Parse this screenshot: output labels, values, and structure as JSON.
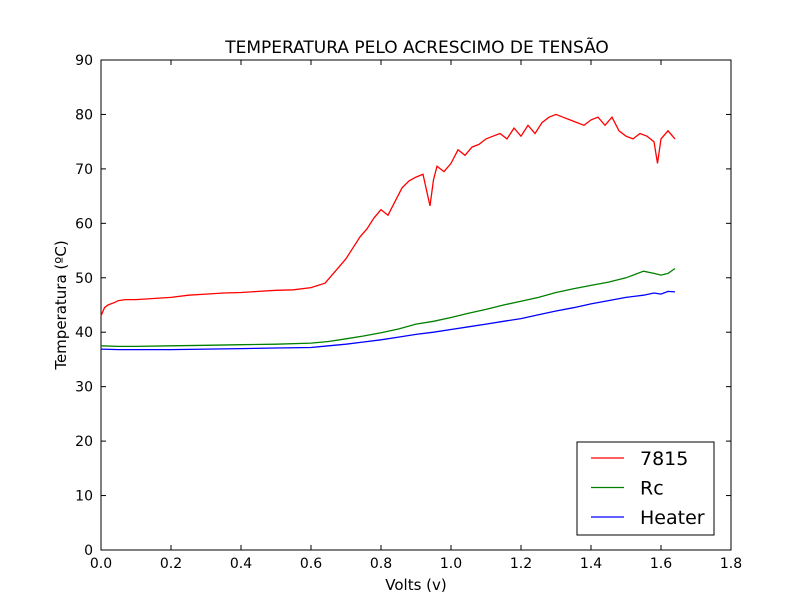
{
  "chart_data": {
    "type": "line",
    "title": "TEMPERATURA PELO ACRESCIMO DE TENSÃO",
    "xlabel": "Volts (v)",
    "ylabel": "Temperatura (ºC)",
    "xlim": [
      0,
      1.8
    ],
    "ylim": [
      0,
      90
    ],
    "xticks": [
      "0.0",
      "0.2",
      "0.4",
      "0.6",
      "0.8",
      "1.0",
      "1.2",
      "1.4",
      "1.6",
      "1.8"
    ],
    "yticks": [
      "0",
      "10",
      "20",
      "30",
      "40",
      "50",
      "60",
      "70",
      "80",
      "90"
    ],
    "grid": false,
    "legend_position": "lower-right",
    "series": [
      {
        "name": "7815",
        "color": "#ff0000",
        "x": [
          0.0,
          0.01,
          0.02,
          0.04,
          0.05,
          0.07,
          0.1,
          0.15,
          0.2,
          0.25,
          0.3,
          0.35,
          0.4,
          0.45,
          0.5,
          0.55,
          0.6,
          0.64,
          0.66,
          0.68,
          0.7,
          0.72,
          0.74,
          0.76,
          0.78,
          0.8,
          0.82,
          0.84,
          0.86,
          0.88,
          0.9,
          0.92,
          0.94,
          0.95,
          0.96,
          0.98,
          1.0,
          1.02,
          1.04,
          1.06,
          1.08,
          1.1,
          1.12,
          1.14,
          1.16,
          1.18,
          1.2,
          1.22,
          1.24,
          1.26,
          1.28,
          1.3,
          1.32,
          1.34,
          1.36,
          1.38,
          1.4,
          1.42,
          1.44,
          1.46,
          1.48,
          1.5,
          1.52,
          1.54,
          1.56,
          1.58,
          1.59,
          1.6,
          1.62,
          1.64
        ],
        "values": [
          43.0,
          44.5,
          45.0,
          45.5,
          45.8,
          46.0,
          46.0,
          46.2,
          46.4,
          46.8,
          47.0,
          47.2,
          47.3,
          47.5,
          47.7,
          47.8,
          48.2,
          49.0,
          50.5,
          52.0,
          53.5,
          55.5,
          57.5,
          59.0,
          61.0,
          62.5,
          61.5,
          64.0,
          66.5,
          67.8,
          68.5,
          69.0,
          63.2,
          68.0,
          70.5,
          69.5,
          71.0,
          73.5,
          72.5,
          74.0,
          74.5,
          75.5,
          76.0,
          76.5,
          75.5,
          77.5,
          76.0,
          78.0,
          76.5,
          78.5,
          79.5,
          80.0,
          79.5,
          79.0,
          78.5,
          78.0,
          79.0,
          79.5,
          78.0,
          79.5,
          77.0,
          76.0,
          75.5,
          76.5,
          76.0,
          75.0,
          71.0,
          75.5,
          77.0,
          75.5
        ]
      },
      {
        "name": "Rc",
        "color": "#008000",
        "x": [
          0.0,
          0.05,
          0.1,
          0.2,
          0.3,
          0.4,
          0.5,
          0.6,
          0.65,
          0.7,
          0.75,
          0.8,
          0.85,
          0.9,
          0.95,
          1.0,
          1.05,
          1.1,
          1.15,
          1.2,
          1.25,
          1.3,
          1.35,
          1.4,
          1.45,
          1.5,
          1.55,
          1.58,
          1.6,
          1.62,
          1.64
        ],
        "values": [
          37.5,
          37.4,
          37.4,
          37.5,
          37.6,
          37.7,
          37.8,
          38.0,
          38.3,
          38.8,
          39.3,
          39.9,
          40.6,
          41.5,
          42.0,
          42.7,
          43.5,
          44.2,
          45.0,
          45.7,
          46.4,
          47.3,
          48.0,
          48.6,
          49.2,
          50.0,
          51.2,
          50.8,
          50.5,
          50.8,
          51.7
        ]
      },
      {
        "name": "Heater",
        "color": "#0000ff",
        "x": [
          0.0,
          0.05,
          0.1,
          0.2,
          0.3,
          0.4,
          0.5,
          0.6,
          0.65,
          0.7,
          0.75,
          0.8,
          0.85,
          0.9,
          0.95,
          1.0,
          1.05,
          1.1,
          1.15,
          1.2,
          1.25,
          1.3,
          1.35,
          1.4,
          1.45,
          1.5,
          1.55,
          1.58,
          1.6,
          1.62,
          1.64
        ],
        "values": [
          36.9,
          36.8,
          36.8,
          36.8,
          36.9,
          37.0,
          37.1,
          37.2,
          37.5,
          37.8,
          38.2,
          38.6,
          39.1,
          39.6,
          40.0,
          40.5,
          41.0,
          41.5,
          42.0,
          42.5,
          43.2,
          43.9,
          44.5,
          45.2,
          45.8,
          46.4,
          46.8,
          47.2,
          47.0,
          47.5,
          47.4
        ]
      }
    ]
  }
}
